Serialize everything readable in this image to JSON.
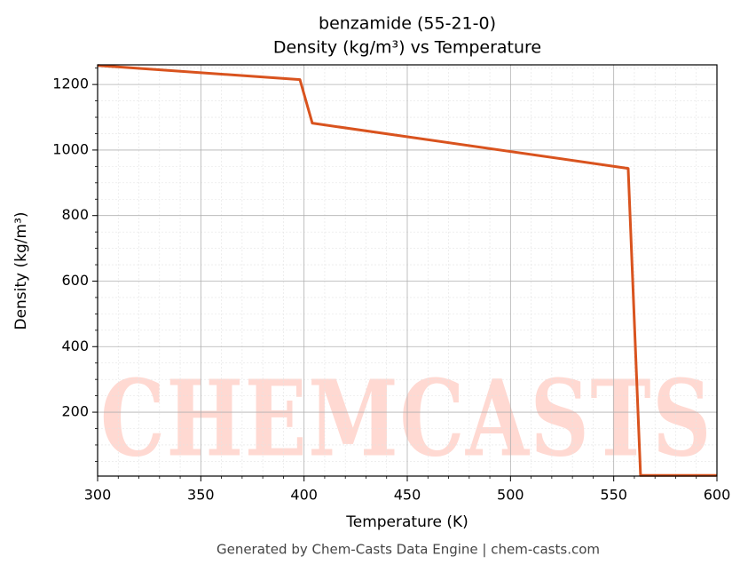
{
  "chart_data": {
    "type": "line",
    "title": "benzamide (55-21-0)",
    "subtitle": "Density (kg/m³) vs Temperature",
    "x_label": "Temperature (K)",
    "y_label": "Density (kg/m³)",
    "watermark": "CHEMCASTS",
    "footer": "Generated by Chem-Casts Data Engine | chem-casts.com",
    "x": [
      300,
      398,
      404,
      557,
      563,
      600
    ],
    "series": [
      {
        "name": "Density",
        "color": "#d9531e",
        "values": [
          1258,
          1215,
          1082,
          944,
          7,
          7
        ]
      }
    ],
    "xlim": [
      300,
      600
    ],
    "xticks": [
      300,
      350,
      400,
      450,
      500,
      550,
      600
    ],
    "ylim": [
      5,
      1260
    ],
    "yticks": [
      200,
      400,
      600,
      800,
      1000,
      1200
    ],
    "grid": true,
    "minor_grid": true
  }
}
